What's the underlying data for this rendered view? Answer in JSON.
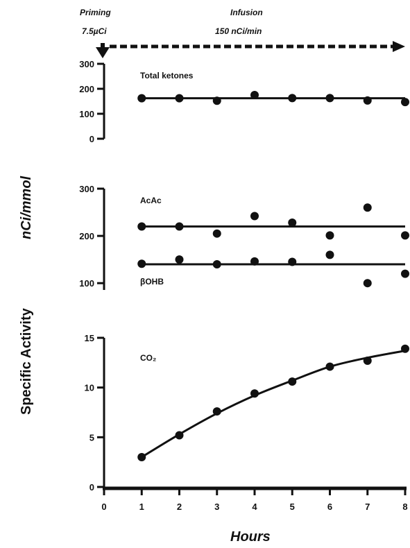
{
  "header": {
    "priming_title": "Priming",
    "priming_dose": "7.5µCi",
    "infusion_title": "Infusion",
    "infusion_rate": "150 nCi/min"
  },
  "ylabel": {
    "main": "Specific Activity",
    "unit": "nCi/mmol"
  },
  "xlabel": "Hours",
  "colors": {
    "ink": "#111111",
    "background": "#ffffff"
  },
  "chart_data": [
    {
      "type": "scatter",
      "panel": "top",
      "x_ticks": [
        "0",
        "1",
        "2",
        "3",
        "4",
        "5",
        "6",
        "7",
        "8"
      ],
      "xlim": [
        0,
        8
      ],
      "ylim": [
        0,
        300
      ],
      "y_ticks": [
        "0",
        "100",
        "200",
        "300"
      ],
      "series": [
        {
          "name": "Total ketones",
          "x": [
            1,
            2,
            3,
            4,
            5,
            6,
            7,
            8
          ],
          "y": [
            162,
            162,
            152,
            175,
            163,
            163,
            153,
            147
          ],
          "fit": "flat",
          "fit_y": 162
        }
      ]
    },
    {
      "type": "scatter",
      "panel": "middle",
      "xlim": [
        0,
        8
      ],
      "ylim": [
        90,
        300
      ],
      "y_ticks": [
        "100",
        "200",
        "300"
      ],
      "series": [
        {
          "name": "AcAc",
          "x": [
            1,
            2,
            3,
            4,
            5,
            6,
            7,
            8
          ],
          "y": [
            220,
            220,
            205,
            242,
            228,
            201,
            260,
            201
          ],
          "fit": "flat",
          "fit_y": 220
        },
        {
          "name": "βOHB",
          "x": [
            1,
            2,
            3,
            4,
            5,
            6,
            7,
            8
          ],
          "y": [
            141,
            150,
            140,
            146,
            145,
            160,
            100,
            120
          ],
          "fit": "flat",
          "fit_y": 140
        }
      ]
    },
    {
      "type": "line",
      "panel": "bottom",
      "xlim": [
        0,
        8
      ],
      "ylim": [
        0,
        15
      ],
      "y_ticks": [
        "0",
        "5",
        "10",
        "15"
      ],
      "series": [
        {
          "name": "CO₂",
          "x": [
            1,
            2,
            3,
            4,
            5,
            6,
            7,
            8
          ],
          "y": [
            3.0,
            5.2,
            7.6,
            9.4,
            10.6,
            12.1,
            12.7,
            13.9
          ],
          "fit": "curve",
          "fit_x": [
            1,
            2,
            3,
            4,
            5,
            6,
            7,
            8
          ],
          "fit_y": [
            3.0,
            5.3,
            7.4,
            9.2,
            10.7,
            12.1,
            13.0,
            13.7
          ]
        }
      ]
    }
  ]
}
